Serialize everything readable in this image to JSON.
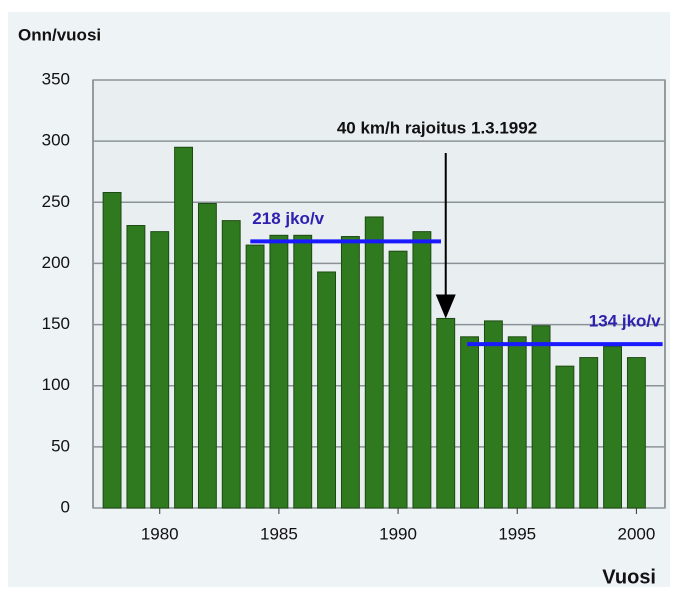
{
  "chart_data": {
    "type": "bar",
    "ylabel": "Onn/vuosi",
    "xlabel": "Vuosi",
    "x": [
      1978,
      1979,
      1980,
      1981,
      1982,
      1983,
      1984,
      1985,
      1986,
      1987,
      1988,
      1989,
      1990,
      1991,
      1992,
      1993,
      1994,
      1995,
      1996,
      1997,
      1998,
      1999,
      2000
    ],
    "values": [
      258,
      231,
      226,
      295,
      249,
      235,
      215,
      223,
      223,
      193,
      222,
      238,
      210,
      226,
      155,
      140,
      153,
      140,
      149,
      116,
      123,
      132,
      123
    ],
    "color": "#2f7a1f",
    "xlim": [
      1977.2,
      2001.2
    ],
    "xticks": [
      1980,
      1985,
      1990,
      1995,
      2000
    ],
    "ylim": [
      0,
      350
    ],
    "yticks": [
      0,
      50,
      100,
      150,
      200,
      250,
      300,
      350
    ],
    "grid": true,
    "reference_lines": [
      {
        "label": "218 jko/v",
        "value": 218,
        "x": [
          1983.8,
          1991.8
        ],
        "color": "#1a1aff"
      },
      {
        "label": "134 jko/v",
        "value": 134,
        "x": [
          1992.9,
          2001.1
        ],
        "color": "#1a1aff"
      }
    ],
    "annotation": {
      "text": "40 km/h rajoitus 1.3.1992",
      "x": 1992
    }
  }
}
